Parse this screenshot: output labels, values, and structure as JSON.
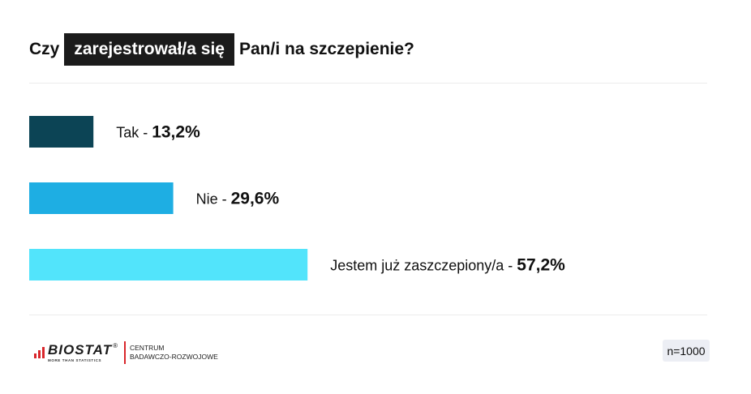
{
  "title": {
    "prefix": "Czy",
    "highlight": "zarejestrował/a się",
    "suffix": "Pan/i na szczepienie?"
  },
  "chart_data": {
    "type": "bar",
    "orientation": "horizontal",
    "categories": [
      "Tak",
      "Nie",
      "Jestem już zaszczepiony/a"
    ],
    "values": [
      13.2,
      29.6,
      57.2
    ],
    "value_labels": [
      "13,2%",
      "29,6%",
      "57,2%"
    ],
    "colors": [
      "#0c4455",
      "#1eaee3",
      "#52e4fb"
    ],
    "xlim": [
      0,
      100
    ],
    "grid": false,
    "legend": "none"
  },
  "footer": {
    "logo_name": "BIOSTAT",
    "logo_reg": "®",
    "logo_tagline": "MORE THAN STATISTICS",
    "logo_sub_line1": "CENTRUM",
    "logo_sub_line2": "BADAWCZO-ROZWOJOWE",
    "sample": "n=1000"
  }
}
